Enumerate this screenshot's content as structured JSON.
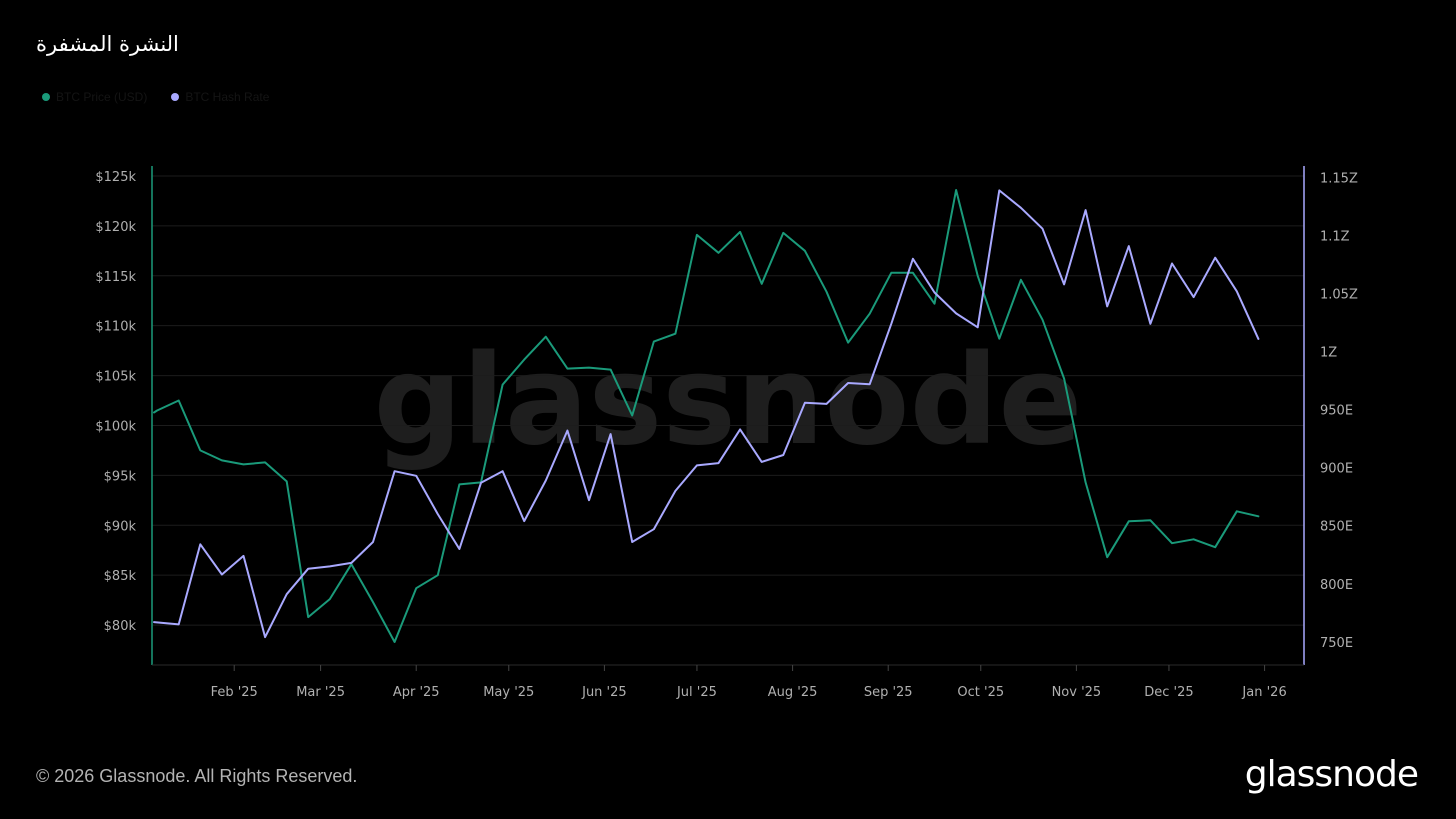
{
  "title": "النشرة المشفرة",
  "legend": [
    {
      "label": "BTC Price (USD)",
      "color": "#1a9a7a"
    },
    {
      "label": "BTC Hash Rate",
      "color": "#a9a9ff"
    }
  ],
  "footer": {
    "copyright": "© 2026 Glassnode. All Rights Reserved.",
    "brand": "glassnode"
  },
  "watermark": "glassnode",
  "colors": {
    "background": "#000000",
    "price": "#1a9a7a",
    "hashrate": "#a9a9ff",
    "grid": "#1c1c1c",
    "tick": "#b0b0b0"
  },
  "chart_data": {
    "type": "line",
    "title": "النشرة المشفرة",
    "grid": true,
    "legend_position": "top-left",
    "x_range": [
      "2025-01-06",
      "2026-01-06"
    ],
    "x_ticks": [
      {
        "label": "Feb '25",
        "date": "2025-02-01"
      },
      {
        "label": "Mar '25",
        "date": "2025-03-01"
      },
      {
        "label": "Apr '25",
        "date": "2025-04-01"
      },
      {
        "label": "May '25",
        "date": "2025-05-01"
      },
      {
        "label": "Jun '25",
        "date": "2025-06-01"
      },
      {
        "label": "Jul '25",
        "date": "2025-07-01"
      },
      {
        "label": "Aug '25",
        "date": "2025-08-01"
      },
      {
        "label": "Sep '25",
        "date": "2025-09-01"
      },
      {
        "label": "Oct '25",
        "date": "2025-10-01"
      },
      {
        "label": "Nov '25",
        "date": "2025-11-01"
      },
      {
        "label": "Dec '25",
        "date": "2025-12-01"
      },
      {
        "label": "Jan '26",
        "date": "2026-01-01"
      }
    ],
    "y_left": {
      "ylim": [
        76000,
        126000
      ],
      "ticks": [
        {
          "label": "$80k",
          "value": 80000
        },
        {
          "label": "$85k",
          "value": 85000
        },
        {
          "label": "$90k",
          "value": 90000
        },
        {
          "label": "$95k",
          "value": 95000
        },
        {
          "label": "$100k",
          "value": 100000
        },
        {
          "label": "$105k",
          "value": 105000
        },
        {
          "label": "$110k",
          "value": 110000
        },
        {
          "label": "$115k",
          "value": 115000
        },
        {
          "label": "$120k",
          "value": 120000
        },
        {
          "label": "$125k",
          "value": 125000
        }
      ]
    },
    "y_right": {
      "ylim": [
        730,
        1160
      ],
      "ticks": [
        {
          "label": "750E",
          "value": 750
        },
        {
          "label": "800E",
          "value": 800
        },
        {
          "label": "850E",
          "value": 850
        },
        {
          "label": "900E",
          "value": 900
        },
        {
          "label": "950E",
          "value": 950
        },
        {
          "label": "1Z",
          "value": 1000
        },
        {
          "label": "1.05Z",
          "value": 1050
        },
        {
          "label": "1.1Z",
          "value": 1100
        },
        {
          "label": "1.15Z",
          "value": 1150
        }
      ]
    },
    "series": [
      {
        "name": "BTC Price (USD)",
        "axis": "left",
        "color": "#1a9a7a",
        "points": [
          [
            "2025-01-06",
            101300
          ],
          [
            "2025-01-07",
            101500
          ],
          [
            "2025-01-14",
            102500
          ],
          [
            "2025-01-21",
            97500
          ],
          [
            "2025-01-28",
            96500
          ],
          [
            "2025-02-04",
            96100
          ],
          [
            "2025-02-11",
            96300
          ],
          [
            "2025-02-18",
            94400
          ],
          [
            "2025-02-25",
            80800
          ],
          [
            "2025-03-04",
            82600
          ],
          [
            "2025-03-11",
            86100
          ],
          [
            "2025-03-18",
            82300
          ],
          [
            "2025-03-25",
            78300
          ],
          [
            "2025-04-01",
            83700
          ],
          [
            "2025-04-08",
            85000
          ],
          [
            "2025-04-15",
            94100
          ],
          [
            "2025-04-22",
            94300
          ],
          [
            "2025-04-29",
            104100
          ],
          [
            "2025-05-06",
            106600
          ],
          [
            "2025-05-13",
            108900
          ],
          [
            "2025-05-20",
            105700
          ],
          [
            "2025-05-27",
            105800
          ],
          [
            "2025-06-03",
            105600
          ],
          [
            "2025-06-10",
            101000
          ],
          [
            "2025-06-17",
            108400
          ],
          [
            "2025-06-24",
            109200
          ],
          [
            "2025-07-01",
            119100
          ],
          [
            "2025-07-08",
            117300
          ],
          [
            "2025-07-15",
            119400
          ],
          [
            "2025-07-22",
            114200
          ],
          [
            "2025-07-29",
            119300
          ],
          [
            "2025-08-05",
            117500
          ],
          [
            "2025-08-12",
            113400
          ],
          [
            "2025-08-19",
            108300
          ],
          [
            "2025-08-26",
            111200
          ],
          [
            "2025-09-02",
            115300
          ],
          [
            "2025-09-09",
            115300
          ],
          [
            "2025-09-16",
            112200
          ],
          [
            "2025-09-23",
            123600
          ],
          [
            "2025-09-30",
            115000
          ],
          [
            "2025-10-07",
            108700
          ],
          [
            "2025-10-14",
            114600
          ],
          [
            "2025-10-21",
            110600
          ],
          [
            "2025-10-28",
            104700
          ],
          [
            "2025-11-04",
            94300
          ],
          [
            "2025-11-11",
            86800
          ],
          [
            "2025-11-18",
            90400
          ],
          [
            "2025-11-25",
            90500
          ],
          [
            "2025-12-02",
            88200
          ],
          [
            "2025-12-09",
            88600
          ],
          [
            "2025-12-16",
            87800
          ],
          [
            "2025-12-23",
            91400
          ],
          [
            "2025-12-30",
            90900
          ]
        ]
      },
      {
        "name": "BTC Hash Rate",
        "axis": "right",
        "color": "#a9a9ff",
        "points": [
          [
            "2025-01-06",
            767
          ],
          [
            "2025-01-14",
            765
          ],
          [
            "2025-01-21",
            834
          ],
          [
            "2025-01-28",
            808
          ],
          [
            "2025-02-04",
            824
          ],
          [
            "2025-02-11",
            754
          ],
          [
            "2025-02-18",
            791
          ],
          [
            "2025-02-25",
            813
          ],
          [
            "2025-03-04",
            815
          ],
          [
            "2025-03-11",
            818
          ],
          [
            "2025-03-18",
            836
          ],
          [
            "2025-03-25",
            897
          ],
          [
            "2025-04-01",
            893
          ],
          [
            "2025-04-08",
            860
          ],
          [
            "2025-04-15",
            830
          ],
          [
            "2025-04-22",
            887
          ],
          [
            "2025-04-29",
            897
          ],
          [
            "2025-05-06",
            854
          ],
          [
            "2025-05-13",
            889
          ],
          [
            "2025-05-20",
            932
          ],
          [
            "2025-05-27",
            872
          ],
          [
            "2025-06-03",
            929
          ],
          [
            "2025-06-10",
            836
          ],
          [
            "2025-06-17",
            847
          ],
          [
            "2025-06-24",
            880
          ],
          [
            "2025-07-01",
            902
          ],
          [
            "2025-07-08",
            904
          ],
          [
            "2025-07-15",
            933
          ],
          [
            "2025-07-22",
            905
          ],
          [
            "2025-07-29",
            911
          ],
          [
            "2025-08-05",
            956
          ],
          [
            "2025-08-12",
            955
          ],
          [
            "2025-08-19",
            973
          ],
          [
            "2025-08-26",
            972
          ],
          [
            "2025-09-02",
            1024
          ],
          [
            "2025-09-09",
            1080
          ],
          [
            "2025-09-16",
            1051
          ],
          [
            "2025-09-23",
            1033
          ],
          [
            "2025-09-30",
            1021
          ],
          [
            "2025-10-07",
            1139
          ],
          [
            "2025-10-14",
            1124
          ],
          [
            "2025-10-21",
            1106
          ],
          [
            "2025-10-28",
            1058
          ],
          [
            "2025-11-04",
            1122
          ],
          [
            "2025-11-11",
            1039
          ],
          [
            "2025-11-18",
            1091
          ],
          [
            "2025-11-25",
            1024
          ],
          [
            "2025-12-02",
            1076
          ],
          [
            "2025-12-09",
            1047
          ],
          [
            "2025-12-16",
            1081
          ],
          [
            "2025-12-23",
            1052
          ],
          [
            "2025-12-30",
            1011
          ]
        ]
      }
    ]
  }
}
